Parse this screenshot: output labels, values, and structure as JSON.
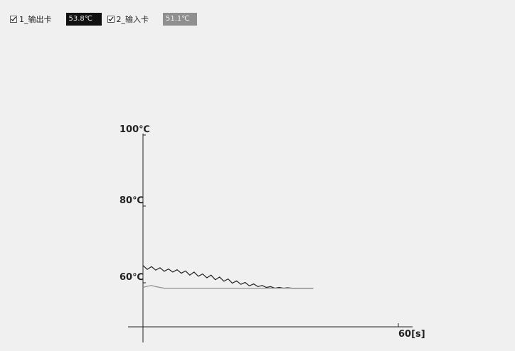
{
  "legend": {
    "items": [
      {
        "label": "1_输出卡",
        "value": "53.8℃",
        "checked": true,
        "box_color": "#111111"
      },
      {
        "label": "2_输入卡",
        "value": "51.1℃",
        "checked": true,
        "box_color": "#8f8f8f"
      }
    ]
  },
  "chart_data": {
    "type": "line",
    "y_ticks": [
      "100℃",
      "80℃",
      "60℃"
    ],
    "x_tick_end": "60[s]",
    "ylim": [
      55,
      100
    ],
    "xlim": [
      0,
      60
    ],
    "grid": false,
    "series": [
      {
        "name": "1_输出卡",
        "color": "#222222",
        "x": [
          0,
          1,
          2,
          3,
          4,
          5,
          6,
          7,
          8,
          9,
          10,
          11,
          12,
          13,
          14,
          15,
          16,
          17,
          18,
          19,
          20,
          21,
          22,
          23,
          24,
          25,
          26,
          27,
          28,
          29,
          30,
          31,
          32,
          33,
          34,
          35,
          36,
          37,
          38,
          39,
          40
        ],
        "y": [
          64.5,
          63.5,
          64.2,
          63.3,
          63.9,
          63.0,
          63.6,
          62.8,
          63.4,
          62.5,
          63.1,
          62.0,
          62.8,
          61.7,
          62.3,
          61.3,
          62.0,
          60.8,
          61.5,
          60.4,
          61.0,
          59.9,
          60.5,
          59.6,
          60.1,
          59.2,
          59.7,
          59.0,
          59.3,
          58.8,
          59.0,
          58.6,
          58.8,
          58.6,
          58.7,
          58.6,
          58.6,
          58.6,
          58.6,
          58.6,
          58.6
        ]
      },
      {
        "name": "2_输入卡",
        "color": "#8f8f8f",
        "x": [
          0,
          1,
          2,
          3,
          4,
          5,
          6,
          7,
          8,
          9,
          10,
          11,
          12,
          13,
          14,
          15,
          16,
          17,
          18,
          19,
          20,
          21,
          22,
          23,
          24,
          25,
          26,
          27,
          28,
          29,
          30,
          31,
          32,
          33,
          34,
          35,
          36,
          37,
          38,
          39,
          40
        ],
        "y": [
          58.8,
          59.1,
          59.3,
          59.0,
          58.8,
          58.6,
          58.6,
          58.6,
          58.6,
          58.6,
          58.6,
          58.6,
          58.6,
          58.6,
          58.6,
          58.6,
          58.6,
          58.6,
          58.6,
          58.6,
          58.6,
          58.6,
          58.6,
          58.6,
          58.6,
          58.6,
          58.6,
          58.6,
          58.6,
          58.6,
          58.6,
          58.6,
          58.6,
          58.6,
          58.6,
          58.6,
          58.6,
          58.6,
          58.6,
          58.6,
          58.6
        ]
      }
    ]
  }
}
